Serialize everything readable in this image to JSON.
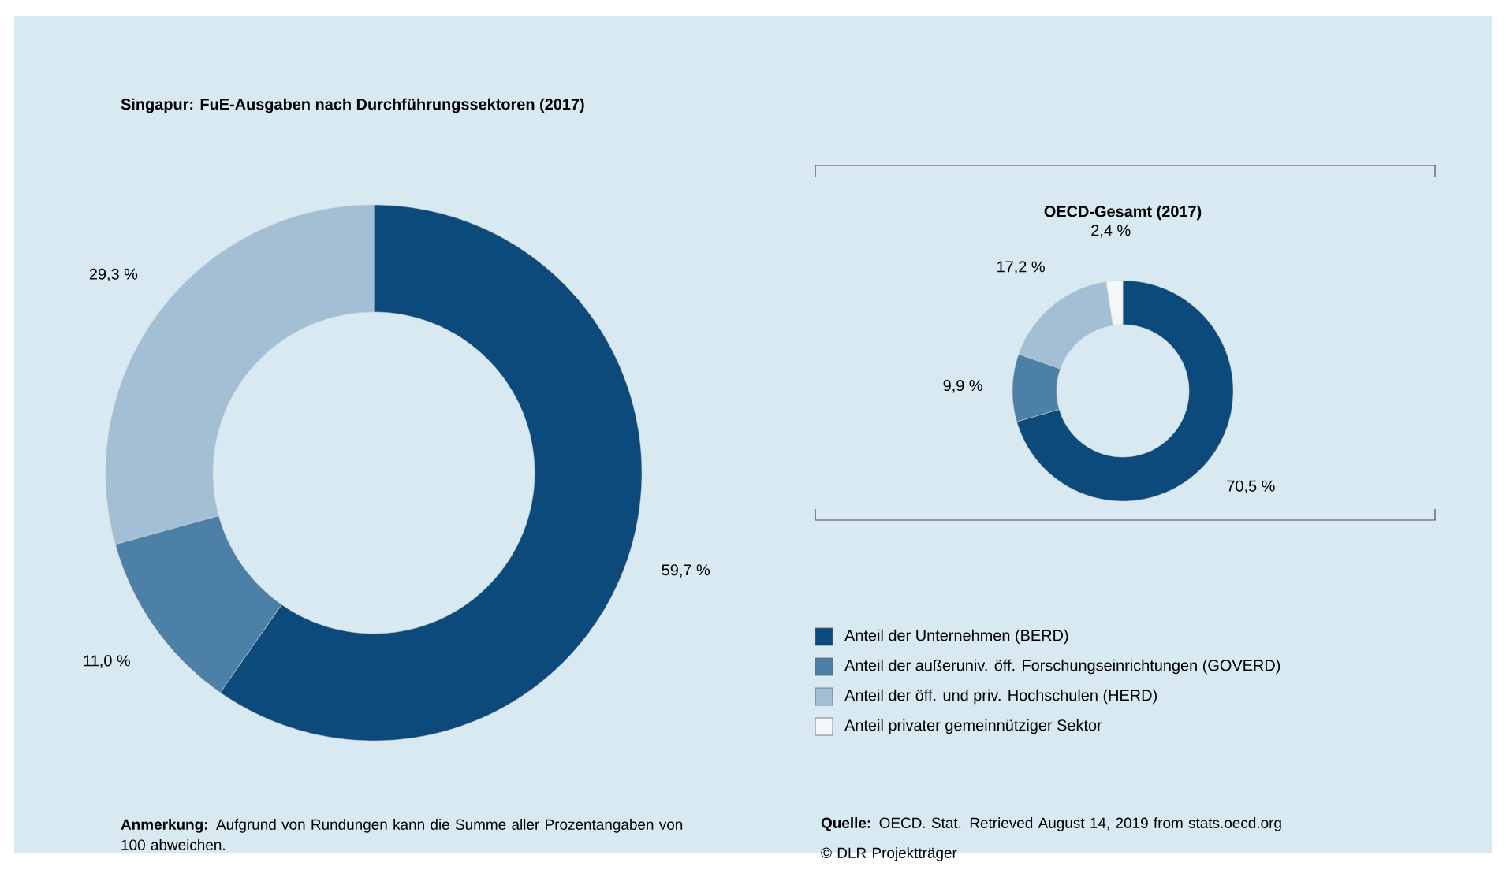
{
  "chart_data": [
    {
      "type": "donut",
      "title": "Singapur: FuE-Ausgaben nach Durchführungssektoren (2017)",
      "categories": [
        null,
        null,
        null
      ],
      "values": [
        59.7,
        11.0,
        29.3
      ],
      "value_labels": [
        "59,7 %",
        "11,0 %",
        "29,3 %"
      ],
      "colors": [
        "#0c4a7c",
        "#4d80a7",
        "#a3bfd6"
      ],
      "annotations": [
        "**Anmerkung:** Aufgrund von Rundungen kann die Summe aller Prozentangaben von 100 abweichen."
      ]
    },
    {
      "type": "donut",
      "title": "OECD-Gesamt (2017)",
      "categories": [
        "Anteil der Unternehmen (BERD)",
        "Anteil der außeruniv. öff. Forschungseinrichtungen (GOVERD)",
        "Anteil der öff. und priv. Hochschulen (HERD)",
        "Anteil privater gemeinnütziger Sektor"
      ],
      "values": [
        70.5,
        9.9,
        17.2,
        2.4
      ],
      "value_labels": [
        "70,5 %",
        "9,9 %",
        "17,2 %",
        "2,4 %"
      ],
      "colors": [
        "#0c4a7c",
        "#4d80a7",
        "#a3bfd6",
        "#f4f7f9"
      ],
      "legend": "bottom",
      "annotations": [
        "**Quelle:** OECD. Stat. Retrieved August 14, 2019 from stats.oecd.org",
        "© DLR Projektträger"
      ]
    }
  ]
}
